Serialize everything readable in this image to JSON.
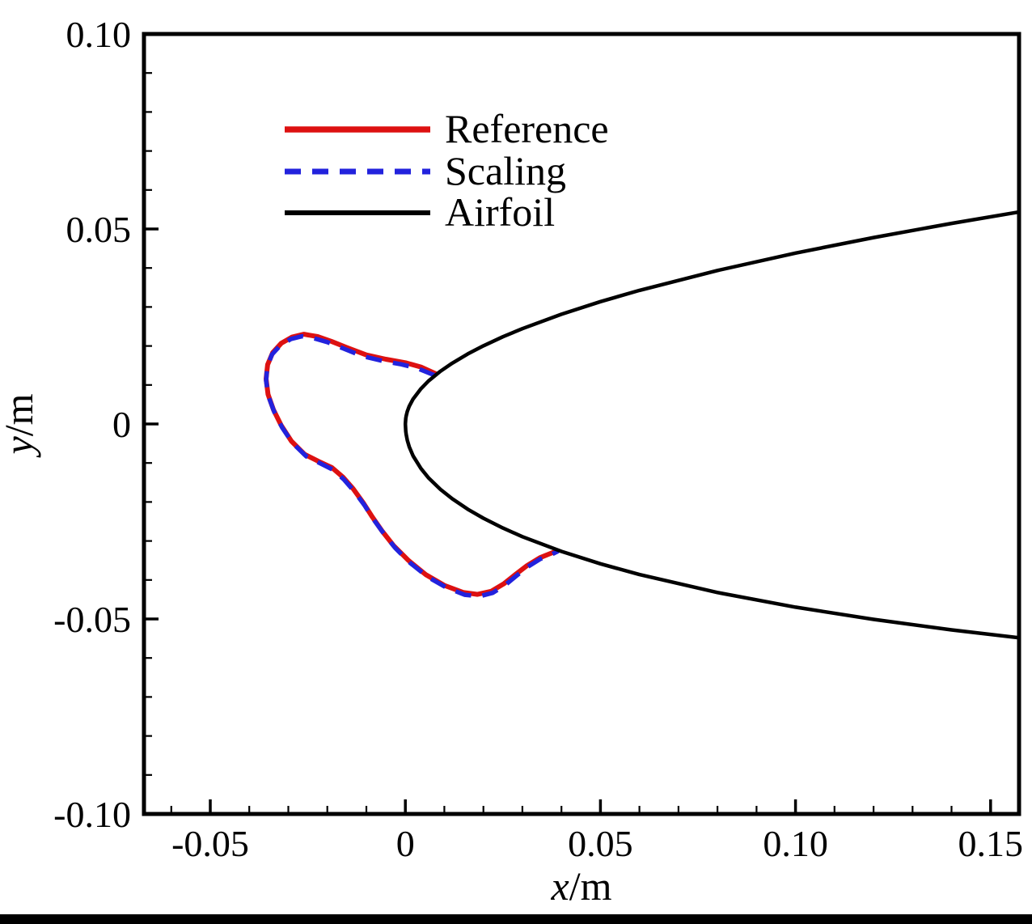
{
  "figure": {
    "background": "#ffffff",
    "border_color": "#000000"
  },
  "chart_data": {
    "type": "line",
    "title": "",
    "axis_labels": {
      "x_var": "x",
      "x_rest": "/m",
      "y_var": "y",
      "y_rest": "/m"
    },
    "xlim": [
      -0.067,
      0.1573
    ],
    "ylim": [
      -0.1,
      0.1
    ],
    "x_major_ticks": [
      -0.05,
      0,
      0.05,
      0.1,
      0.15
    ],
    "x_tick_labels": [
      "-0.05",
      "0",
      "0.05",
      "0.10",
      "0.15"
    ],
    "y_major_ticks": [
      -0.1,
      -0.05,
      0,
      0.05,
      0.1
    ],
    "y_tick_labels": [
      "-0.10",
      "-0.05",
      "0",
      "0.05",
      "0.10"
    ],
    "minor_tick_step": 0.01,
    "grid": false,
    "legend": {
      "position": "upper-left-inside",
      "entries": [
        {
          "label": "Reference",
          "color": "#dd1111",
          "style": "solid"
        },
        {
          "label": "Scaling",
          "color": "#2222dd",
          "style": "dashed"
        },
        {
          "label": "Airfoil",
          "color": "#000000",
          "style": "solid"
        }
      ]
    },
    "series": [
      {
        "name": "Reference",
        "color": "#dd1111",
        "style": "solid",
        "width": 6,
        "points": [
          [
            0.008,
            0.0128
          ],
          [
            0.004,
            0.0146
          ],
          [
            0.0,
            0.0157
          ],
          [
            -0.005,
            0.0166
          ],
          [
            -0.01,
            0.0177
          ],
          [
            -0.015,
            0.0196
          ],
          [
            -0.019,
            0.0212
          ],
          [
            -0.0225,
            0.0224
          ],
          [
            -0.026,
            0.023
          ],
          [
            -0.029,
            0.0223
          ],
          [
            -0.0318,
            0.0207
          ],
          [
            -0.034,
            0.0183
          ],
          [
            -0.0353,
            0.0152
          ],
          [
            -0.0357,
            0.0116
          ],
          [
            -0.0352,
            0.0076
          ],
          [
            -0.0338,
            0.0036
          ],
          [
            -0.0318,
            -0.0004
          ],
          [
            -0.0292,
            -0.0044
          ],
          [
            -0.0258,
            -0.0078
          ],
          [
            -0.0222,
            -0.0096
          ],
          [
            -0.0188,
            -0.0112
          ],
          [
            -0.016,
            -0.0136
          ],
          [
            -0.0134,
            -0.0166
          ],
          [
            -0.0108,
            -0.0202
          ],
          [
            -0.0085,
            -0.0238
          ],
          [
            -0.006,
            -0.0274
          ],
          [
            -0.003,
            -0.0312
          ],
          [
            0.0008,
            -0.035
          ],
          [
            0.0052,
            -0.0386
          ],
          [
            0.01,
            -0.0414
          ],
          [
            0.0148,
            -0.0432
          ],
          [
            0.0185,
            -0.0437
          ],
          [
            0.022,
            -0.0429
          ],
          [
            0.0252,
            -0.041
          ],
          [
            0.0282,
            -0.0386
          ],
          [
            0.0312,
            -0.0363
          ],
          [
            0.0345,
            -0.0343
          ],
          [
            0.0372,
            -0.0332
          ],
          [
            0.0392,
            -0.0324
          ]
        ]
      },
      {
        "name": "Scaling",
        "color": "#2222dd",
        "style": "dashed",
        "dash": "20 14",
        "width": 5.5,
        "points": [
          [
            0.0075,
            0.0125
          ],
          [
            0.003,
            0.0143
          ],
          [
            -0.001,
            0.0153
          ],
          [
            -0.006,
            0.0162
          ],
          [
            -0.011,
            0.0174
          ],
          [
            -0.016,
            0.0194
          ],
          [
            -0.02,
            0.021
          ],
          [
            -0.0235,
            0.022
          ],
          [
            -0.0265,
            0.0225
          ],
          [
            -0.0293,
            0.0218
          ],
          [
            -0.032,
            0.0202
          ],
          [
            -0.0342,
            0.0178
          ],
          [
            -0.0354,
            0.0147
          ],
          [
            -0.0357,
            0.0111
          ],
          [
            -0.0351,
            0.0071
          ],
          [
            -0.0336,
            0.0031
          ],
          [
            -0.0316,
            -0.0009
          ],
          [
            -0.0289,
            -0.0049
          ],
          [
            -0.0254,
            -0.0083
          ],
          [
            -0.0218,
            -0.0101
          ],
          [
            -0.0184,
            -0.0118
          ],
          [
            -0.0157,
            -0.0143
          ],
          [
            -0.0131,
            -0.0173
          ],
          [
            -0.0105,
            -0.0208
          ],
          [
            -0.0082,
            -0.0244
          ],
          [
            -0.0056,
            -0.028
          ],
          [
            -0.0026,
            -0.0318
          ],
          [
            0.0012,
            -0.0356
          ],
          [
            0.0057,
            -0.0392
          ],
          [
            0.0106,
            -0.042
          ],
          [
            0.0152,
            -0.0438
          ],
          [
            0.019,
            -0.0442
          ],
          [
            0.0224,
            -0.0433
          ],
          [
            0.0256,
            -0.0413
          ],
          [
            0.0285,
            -0.0389
          ],
          [
            0.0314,
            -0.0366
          ],
          [
            0.0346,
            -0.0346
          ],
          [
            0.0374,
            -0.0335
          ],
          [
            0.0392,
            -0.0326
          ]
        ]
      },
      {
        "name": "Airfoil",
        "color": "#000000",
        "style": "solid",
        "width": 4.5,
        "points": [
          [
            0.158,
            0.05448
          ],
          [
            0.14,
            0.05144
          ],
          [
            0.12,
            0.0478
          ],
          [
            0.1,
            0.04381
          ],
          [
            0.08,
            0.03936
          ],
          [
            0.06,
            0.03425
          ],
          [
            0.05,
            0.03136
          ],
          [
            0.04,
            0.02813
          ],
          [
            0.03,
            0.02445
          ],
          [
            0.025,
            0.02236
          ],
          [
            0.02,
            0.02004
          ],
          [
            0.016,
            0.01796
          ],
          [
            0.012,
            0.01559
          ],
          [
            0.009,
            0.01353
          ],
          [
            0.006,
            0.01107
          ],
          [
            0.004,
            0.00905
          ],
          [
            0.002,
            0.00642
          ],
          [
            0.001,
            0.00454
          ],
          [
            0.0005,
            0.00322
          ],
          [
            0.0002,
            0.00203
          ],
          [
            0.0001,
            0.00144
          ],
          [
            0.0,
            0.0
          ],
          [
            0.0001,
            -0.00188
          ],
          [
            0.0002,
            -0.00265
          ],
          [
            0.0005,
            -0.00416
          ],
          [
            0.001,
            -0.00585
          ],
          [
            0.002,
            -0.0082
          ],
          [
            0.004,
            -0.01144
          ],
          [
            0.006,
            -0.01387
          ],
          [
            0.009,
            -0.01678
          ],
          [
            0.012,
            -0.01917
          ],
          [
            0.016,
            -0.02186
          ],
          [
            0.02,
            -0.02417
          ],
          [
            0.025,
            -0.02668
          ],
          [
            0.03,
            -0.0289
          ],
          [
            0.04,
            -0.03268
          ],
          [
            0.05,
            -0.03586
          ],
          [
            0.06,
            -0.03862
          ],
          [
            0.08,
            -0.04322
          ],
          [
            0.1,
            -0.04697
          ],
          [
            0.12,
            -0.05011
          ],
          [
            0.14,
            -0.0528
          ],
          [
            0.158,
            -0.0549
          ]
        ]
      }
    ]
  }
}
